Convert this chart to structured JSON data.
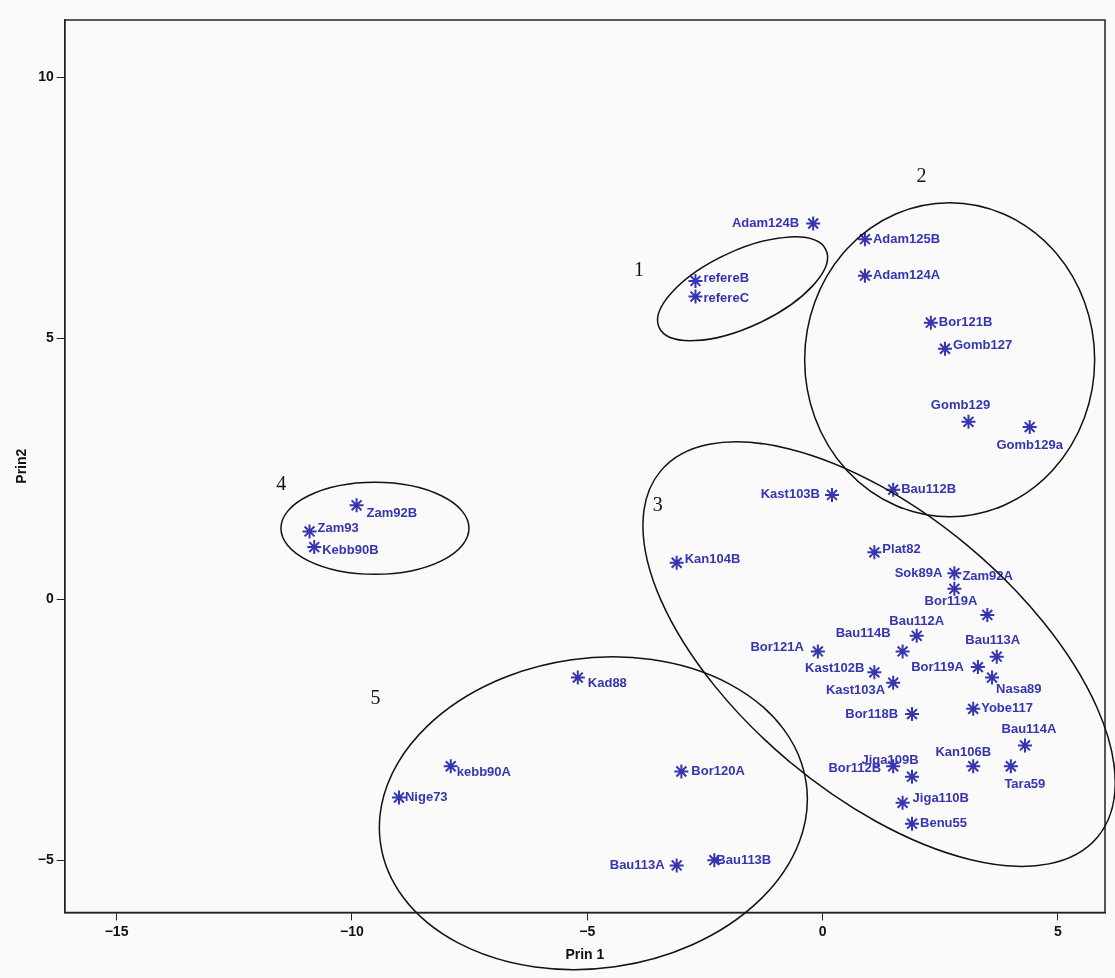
{
  "chart_data": {
    "type": "scatter",
    "xlabel": "Prin 1",
    "ylabel": "Prin2",
    "xlim": [
      -16.1,
      6.0
    ],
    "ylim": [
      -6.0,
      11.1
    ],
    "xticks": [
      -15,
      -10,
      -5,
      0,
      5
    ],
    "yticks": [
      -5,
      0,
      5,
      10
    ],
    "grid": false,
    "legend": false,
    "marker": "cross",
    "series": [
      {
        "name": "Adam124B",
        "color": "#3535b0",
        "x": [
          -0.2
        ],
        "values": [
          7.2
        ]
      },
      {
        "name": "refereB",
        "color": "#3535b0",
        "x": [
          -2.7
        ],
        "values": [
          6.1
        ]
      },
      {
        "name": "refereC",
        "color": "#3535b0",
        "x": [
          -2.7
        ],
        "values": [
          5.8
        ]
      },
      {
        "name": "Adam125B",
        "color": "#3535b0",
        "x": [
          0.9
        ],
        "values": [
          6.9
        ]
      },
      {
        "name": "Adam124A",
        "color": "#3535b0",
        "x": [
          0.9
        ],
        "values": [
          6.2
        ]
      },
      {
        "name": "Bor121B",
        "color": "#3535b0",
        "x": [
          2.3
        ],
        "values": [
          5.3
        ]
      },
      {
        "name": "Gomb127",
        "color": "#3535b0",
        "x": [
          2.6
        ],
        "values": [
          4.8
        ]
      },
      {
        "name": "Gomb129",
        "color": "#3535b0",
        "x": [
          3.1
        ],
        "values": [
          3.4
        ]
      },
      {
        "name": "Gomb129a",
        "color": "#3535b0",
        "x": [
          4.4
        ],
        "values": [
          3.3
        ]
      },
      {
        "name": "Bau112B",
        "color": "#3535b0",
        "x": [
          1.5
        ],
        "values": [
          2.1
        ]
      },
      {
        "name": "Kast103B",
        "color": "#3535b0",
        "x": [
          0.2
        ],
        "values": [
          2.0
        ]
      },
      {
        "name": "Kan104B",
        "color": "#3535b0",
        "x": [
          -3.1
        ],
        "values": [
          0.7
        ]
      },
      {
        "name": "Plat82",
        "color": "#3535b0",
        "x": [
          1.1
        ],
        "values": [
          0.9
        ]
      },
      {
        "name": "Sok89A",
        "color": "#3535b0",
        "x": [
          2.8
        ],
        "values": [
          0.5
        ]
      },
      {
        "name": "Zam92A",
        "color": "#3535b0",
        "x": [
          2.8
        ],
        "values": [
          0.2
        ]
      },
      {
        "name": "Bor119A",
        "color": "#3535b0",
        "x": [
          3.5
        ],
        "values": [
          -0.3
        ]
      },
      {
        "name": "Bau112A",
        "color": "#3535b0",
        "x": [
          2.0
        ],
        "values": [
          -0.7
        ]
      },
      {
        "name": "Bau114B",
        "color": "#3535b0",
        "x": [
          1.7
        ],
        "values": [
          -1.0
        ]
      },
      {
        "name": "Bor121A",
        "color": "#3535b0",
        "x": [
          -0.1
        ],
        "values": [
          -1.0
        ]
      },
      {
        "name": "Bau113A",
        "color": "#3535b0",
        "x": [
          3.7
        ],
        "values": [
          -1.1
        ]
      },
      {
        "name": "Kast102B",
        "color": "#3535b0",
        "x": [
          1.1
        ],
        "values": [
          -1.4
        ]
      },
      {
        "name": "Kast103A",
        "color": "#3535b0",
        "x": [
          1.5
        ],
        "values": [
          -1.6
        ]
      },
      {
        "name": "Bor119A",
        "color": "#3535b0",
        "x": [
          3.3
        ],
        "values": [
          -1.3
        ]
      },
      {
        "name": "Nasa89",
        "color": "#3535b0",
        "x": [
          3.6
        ],
        "values": [
          -1.5
        ]
      },
      {
        "name": "Bor118B",
        "color": "#3535b0",
        "x": [
          1.9
        ],
        "values": [
          -2.2
        ]
      },
      {
        "name": "Yobe117",
        "color": "#3535b0",
        "x": [
          3.2
        ],
        "values": [
          -2.1
        ]
      },
      {
        "name": "Bau114A",
        "color": "#3535b0",
        "x": [
          4.3
        ],
        "values": [
          -2.8
        ]
      },
      {
        "name": "Kan106B",
        "color": "#3535b0",
        "x": [
          3.2
        ],
        "values": [
          -3.2
        ]
      },
      {
        "name": "Tara59",
        "color": "#3535b0",
        "x": [
          4.0
        ],
        "values": [
          -3.2
        ]
      },
      {
        "name": "Jiga109B",
        "color": "#3535b0",
        "x": [
          1.9
        ],
        "values": [
          -3.4
        ]
      },
      {
        "name": "Bor112B",
        "color": "#3535b0",
        "x": [
          1.5
        ],
        "values": [
          -3.2
        ]
      },
      {
        "name": "Jiga110B",
        "color": "#3535b0",
        "x": [
          1.7
        ],
        "values": [
          -3.9
        ]
      },
      {
        "name": "Benu55",
        "color": "#3535b0",
        "x": [
          1.9
        ],
        "values": [
          -4.3
        ]
      },
      {
        "name": "Zam92B",
        "color": "#3535b0",
        "x": [
          -9.9
        ],
        "values": [
          1.8
        ]
      },
      {
        "name": "Zam93",
        "color": "#3535b0",
        "x": [
          -10.9
        ],
        "values": [
          1.3
        ]
      },
      {
        "name": "Kebb90B",
        "color": "#3535b0",
        "x": [
          -10.8
        ],
        "values": [
          1.0
        ]
      },
      {
        "name": "Kad88",
        "color": "#3535b0",
        "x": [
          -5.2
        ],
        "values": [
          -1.5
        ]
      },
      {
        "name": "kebb90A",
        "color": "#3535b0",
        "x": [
          -7.9
        ],
        "values": [
          -3.2
        ]
      },
      {
        "name": "Nige73",
        "color": "#3535b0",
        "x": [
          -9.0
        ],
        "values": [
          -3.8
        ]
      },
      {
        "name": "Bor120A",
        "color": "#3535b0",
        "x": [
          -3.0
        ],
        "values": [
          -3.3
        ]
      },
      {
        "name": "Bau113A",
        "color": "#3535b0",
        "x": [
          -3.1
        ],
        "values": [
          -5.1
        ]
      },
      {
        "name": "Bau113B",
        "color": "#3535b0",
        "x": [
          -2.3
        ],
        "values": [
          -5.0
        ]
      }
    ],
    "annotations": [
      "1",
      "2",
      "3",
      "4",
      "5"
    ]
  }
}
